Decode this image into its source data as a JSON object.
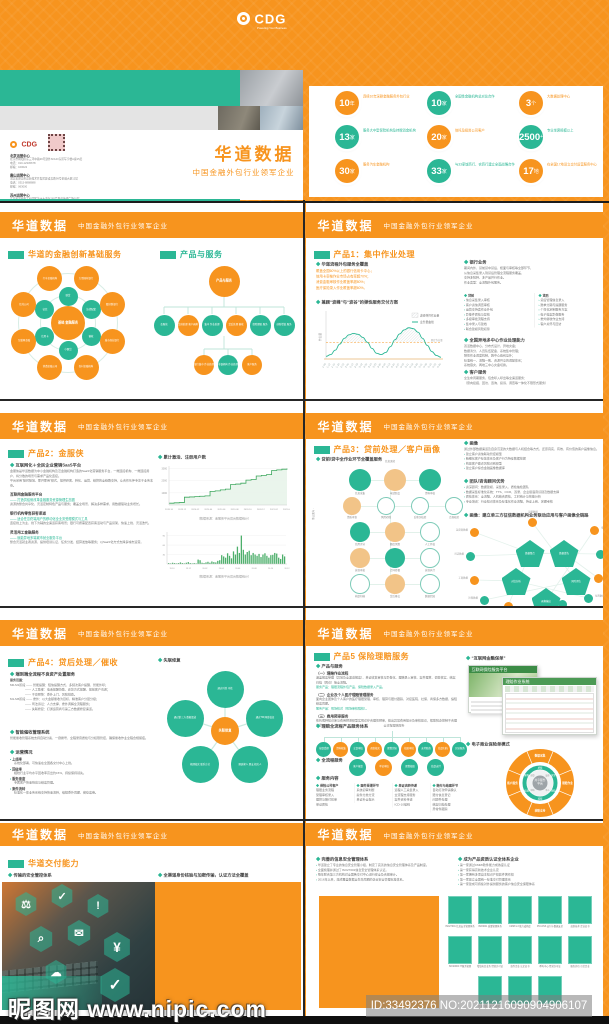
{
  "watermark": {
    "site": "昵图网 www.nipic.com",
    "id_text": "ID:33492376 NO:20211216090904906107"
  },
  "brand": {
    "logo": "CDG",
    "logo_tagline": "Powering Your Business",
    "name": "华道数据",
    "tagline": "中国金融外包行业领军企业"
  },
  "cover": {
    "title": "华道数据",
    "subtitle": "中国金融外包行业领军企业",
    "contacts": [
      {
        "n": "北京运营中心",
        "a": "北京市朝阳区东三环中路39号建外SOHO东区写字楼A座15层",
        "t": "电话：010-12345678",
        "z": "邮编：100022"
      },
      {
        "n": "唐山运营中心",
        "a": "河北省唐山市高新技术开发区建设北路99号金融大厦12层",
        "t": "电话：0315-8888888",
        "z": "邮编：063000"
      },
      {
        "n": "苏州运营中心",
        "a": "江苏省苏州市工业园区苏州大道东265号现代传媒广场10层",
        "t": "电话：0512-6666666",
        "z": "邮编：215000"
      }
    ],
    "web": "网址：www.huadaodata.com",
    "mail": "邮箱：HD.MKT@huadaodata.com"
  },
  "stats": {
    "items": [
      {
        "v": "10",
        "s": "年",
        "c": "o",
        "label": "连续10年深耕金融服务外包行业"
      },
      {
        "v": "10",
        "s": "家",
        "c": "t",
        "label": "全国性金融机构总对总合作"
      },
      {
        "v": "3",
        "s": "个",
        "c": "o",
        "label": "大数据处理中心"
      },
      {
        "v": "13",
        "s": "家",
        "c": "t",
        "label": "服务大中型保险机构及持牌消金机构"
      },
      {
        "v": "20",
        "s": "家",
        "c": "o",
        "label": "信托及投资公司客户"
      },
      {
        "v": "2500",
        "s": "+",
        "c": "t",
        "label": "专业坐席规模以上"
      },
      {
        "v": "30",
        "s": "家",
        "c": "o",
        "label": "服务汽车金融机构"
      },
      {
        "v": "33",
        "s": "家",
        "c": "t",
        "label": "与33家城商行、农商行建立全面战略合作"
      },
      {
        "v": "17",
        "s": "地",
        "c": "o",
        "label": "在全国17地设立交付运营服务中心"
      }
    ]
  },
  "slides": {
    "services": {
      "sec1": "华道的金融创新基础服务",
      "sec2": "产品与服务",
      "hub": {
        "center": "基础 金融服务",
        "inner": [
          "助贷",
          "法律配套",
          "催收",
          "小额贷",
          "信用卡",
          "征信"
        ],
        "outer": [
          "大型国有银行",
          "股份制银行",
          "城市商业银行",
          "农村金融机构",
          "消费金融公司",
          "互联网金融",
          "信托公司",
          "汽车金融机构"
        ]
      },
      "tree": {
        "root": "产品与服务",
        "level1": [
          {
            "t": "金服侠",
            "c": "t"
          },
          {
            "t": "贷前处理 客户画像",
            "c": "o"
          },
          {
            "t": "集中 作业处理",
            "c": "t"
          },
          {
            "t": "贷后处理 催收",
            "c": "o"
          },
          {
            "t": "保险理赔 服务",
            "c": "t"
          },
          {
            "t": "创新增值 服务",
            "c": "t"
          }
        ],
        "level2": [
          {
            "t": "银行集中 作业处理",
            "c": "o"
          },
          {
            "t": "非银机构 作业处理",
            "c": "t"
          },
          {
            "t": "客户服务",
            "c": "o"
          }
        ]
      }
    },
    "p1": {
      "title": "产品1：集中作业处理",
      "blockA_h": "华道流程外包服务全覆盖",
      "blockA": [
        "覆盖全国60%以上的银行信用卡中心；",
        "信用卡审核作业市场占有率超70%；",
        "消费金融审核作业覆盖率超80%；",
        "医疗保险录入作业覆盖率超60%。"
      ],
      "blockB_h": "兼顾“波峰”与“波谷”的弹性服务交付方案",
      "r1_h": "银行业务",
      "r1_p": [
        "期间内外、贷前贷中贷后、柜面与审核等全部环节，",
        "从信息采集录入到贷后管理全流程服务覆盖，",
        "支持多险种、多产品并行作业。",
        "作业类型：全流程外包服务。"
      ],
      "col1_h": "贷前",
      "col1": [
        "信息采集录入审核",
        "客户资信调查审核",
        "运营支持类作业外包",
        "影像件质检与复核",
        "多级审批流程支持",
        "集中录入与建档",
        "联合建模风险初筛"
      ],
      "col2_h": "贷后",
      "col2": [
        "贷后管理信息录入",
        "账单分期与提醒服务",
        "个性化定制服务方案",
        "电子档案影像服务",
        "委外催收作业支持",
        "客户关怀与回访"
      ],
      "r3_h": "全国异地多中心作业处理能力",
      "r3": [
        "双活数据中心，分布式设计，异地灾备；",
        "数据清分、人员队伍配备、系统集中管理；",
        "弹性作业调度机制，跨中心峰谷互补；",
        "标准统一、流程一致、资源共享的调配体系；",
        "系统容灾，两地三中心灾备切换。"
      ],
      "r4_h": "客户服务",
      "r4": [
        "全生命周期服务，包含呼入呼出等全渠道服务：",
        "（意向挖掘、回访、咨询、投诉、调查等一体化不限形式服务）"
      ]
    },
    "p2": {
      "title": "产品2：金服侠",
      "intro_h": "互联网化＋全民企业营销SaaS平台",
      "intro": [
        "金服侠是华道数据为中小金融机构及泛金融机构打造的SaaS化营销服务平台，一端连接机构、一端连接用户，将分散的场景与需求产品化连接。",
        "平台采用“随时随地、即开即用”模式，提供获客、转化、运营、结算的全链路支持，让合作伙伴专注于业务本身。"
      ],
      "blocks": [
        {
          "h": "互联网金融服务平台",
          "s": "—— 打造供给侧改革金融服务资源管理生态圈",
          "p": "资源的整合共享化，灵活定制特色产品与服务；覆盖全场景、解决多样需求，用数据驱动业务增长。"
        },
        {
          "h": "银行机构零售获客渠道",
          "s": "—— 适合任意终端用户的移动化全业务受理模式与工具",
          "p": "连接线上为主、线下为辅的全渠道获客场景；银行可按需配置获客活动与产品货架，快速上线、灵活迭代。"
        },
        {
          "h": "灵活用工金融服务",
          "s": "—— 赋能异地多端城市就业服务平台",
          "p": "整合灵活就业者资源，提供培训认证、任务分发、结算发放等服务；以SaaS化方式支撑多城市运营。"
        }
      ],
      "chart1_h": "累计激活、注册用户数",
      "chart1_cap": "（数据来源：金服侠平台后台数据统计）",
      "chart2_cap": "（数据来源：金服侠平台后台数据统计）"
    },
    "p3": {
      "title": "产品3：贷前处理／客户画像",
      "grid_h": "贷前/贷中全作业环节全覆盖服务",
      "grid": {
        "top_label": "信息流转",
        "side_label": "作业流向",
        "rows": [
          {
            "cells": [
              {
                "c": "t",
                "l": "信息采集"
              },
              {
                "c": "tan",
                "l": "电话照会"
              },
              {
                "c": "t",
                "l": "资料审核"
              }
            ]
          },
          {
            "cells": [
              {
                "c": "tan",
                "l": "资质审查"
              },
              {
                "c": "w",
                "l": "风险初筛"
              },
              {
                "c": "w",
                "l": "反欺诈核验"
              },
              {
                "c": "w",
                "l": "合规校验"
              }
            ]
          },
          {
            "cells": [
              {
                "c": "t",
                "l": "信用评分"
              },
              {
                "c": "tan",
                "l": "额度测算"
              },
              {
                "c": "w",
                "l": "人工复核"
              }
            ]
          },
          {
            "cells": [
              {
                "c": "tan",
                "l": "放款审批"
              },
              {
                "c": "t",
                "l": "合同签署"
              },
              {
                "c": "w",
                "l": "放款执行"
              }
            ]
          },
          {
            "cells": [
              {
                "c": "w",
                "l": "档案归档"
              },
              {
                "c": "tan",
                "l": "贷后移交"
              },
              {
                "c": "w",
                "l": "数据回流"
              }
            ]
          }
        ]
      },
      "r1_h": "画像",
      "r1_p": [
        "通过外部数据渠道及自身沉淀的大数据与人机结合等方式，还原真实、有效、有价值的客户画像信息。"
      ],
      "r1_list": [
        "建立客户资信联动管控模型",
        "精细化客户标签体系及客户行为特征数据挖掘",
        "构建客户欺诈风险识别模型",
        "建立客户综合金融画像数据库"
      ],
      "r2_h": "团队/咨询顾问优势",
      "r2_list": [
        "资深顾问：数据建模、采集录入、质检抽检团队",
        "数据采集标准化系统：TTS、OCR、双录、企业级语音识别及数据支撑",
        "质检体系：全流程、人机结合质检，工时统计与效能分析",
        "专业培训：行业知识体系及标准化作业流程，持证上岗、定期考核"
      ],
      "cluster_cap": "画像：建立单三方征信数据机构业务联动应用与客户画像全链路",
      "cluster": {
        "pentagons": [
          "数据整合",
          "数据清洗",
          "对比分析",
          "风险评估",
          "画像输出"
        ],
        "sats": [
          "运营商数据",
          "司法数据",
          "工商数据",
          "社保数据",
          "电商数据",
          "银联数据",
          "征信数据",
          "位置数据",
          "设备数据",
          "舆情数据",
          "消费数据"
        ]
      }
    },
    "p4": {
      "title": "产品4：贷后处理／催收",
      "a_h": "端到端全流程不良资产处置服务",
      "a_sub": "服务范围：",
      "a_lines": [
        "M0-M1阶段 —— 智能提醒：短信提醒方式、多频次客户提醒、智能外呼；",
        "　　　　　—— 人工助催：电话提醒协助、还款方式提醒、提前客户沟通；",
        "　　　　　—— 不良预警：委外上门、风险排查。",
        "M1-M6阶段 —— 委外：以大金额催收为目标，精准客户分层分级；",
        "　　　　　—— 司法诉讼：人力支撑、委外调解全流程服务；",
        "　　　　　—— 失联修复：打通运营商与第三方数据修复渠道。"
      ],
      "b_h": "智能催收管理系统",
      "b_p": [
        "智能催收管理系统支持自动分案、一键拨号、全程录音质检与分权限管控，确保催收作业全程合规留痕。"
      ],
      "c_h": "运营情况",
      "ops": [
        {
          "t": "上线率",
          "d": "系统化部署，可快速在全国各交付中心上线。"
        },
        {
          "t": "回收率",
          "d": "相较行业平均水平回收率高出约15%，持续保持领先。"
        },
        {
          "t": "服务速度",
          "d": "专属客户快速响应与结案管理。"
        },
        {
          "t": "案件流转",
          "d": "标准化一体业务系统支持快速流转，缩短委外周期、留存案卷。"
        }
      ],
      "flower_cap": "失联修复",
      "flower": {
        "center": "失联修复",
        "petals": [
          "通过刊登 寻找",
          "通过TM 网查核证",
          "顺延家人 朋友 相关人",
          "梳理核实 联系方式",
          "通过第三方 数据渠道"
        ]
      }
    },
    "p5": {
      "title": "产品5 保险理赔服务",
      "l_h": "产品与服务",
      "groups": [
        {
          "h": "（一）理赔作业流程",
          "p": "涵盖报案受理（异地及全渠道报案）、单证收集审核与影像化、理赔录入审核、案件理算、调查核实、结案归档（回访）等全流程。",
          "s": "服务产品：理赔流程外包产品、保险数据录入产品。"
        },
        {
          "h": "（二）企业及个人医疗理赔管理服务",
          "p": "面向企业团体及个人客户的医疗理赔受理、审核、理算与赔付跟踪，对接医院、社保、商保多方数据，缩短结案周期。",
          "s": "服务产品：现场核对（现场审核稽核）。"
        },
        {
          "h": "（三）费用预审服务",
          "p": "依托病种知识库与费用预测模型实现诊疗合理性预审，输出异常费用提示及审核建议，帮助险企控制不合理支出。",
          "s": ""
        }
      ],
      "chain_h": "理赔全流程产品服务体系",
      "chain_top": "全流程理赔服务",
      "chain": [
        "接案受理",
        "资料收集",
        "立案审核",
        "调查核实",
        "理算定损",
        "核赔审批",
        "支付赔款",
        "结案归档",
        "回访服务"
      ],
      "crow_h": "全流程服务",
      "crow": [
        {
          "t": "客户报案",
          "c": "t"
        },
        {
          "t": "单证审核",
          "c": "o"
        },
        {
          "t": "理算核赔",
          "c": "t"
        },
        {
          "t": "结案支付",
          "c": "t"
        }
      ],
      "cols_h": "服务内容",
      "columns": [
        {
          "h": "保险公司客户",
          "items": [
            "理赔业务流程",
            "受理审核录入",
            "理算与赔付初审",
            "单证质检"
          ]
        },
        {
          "h": "案件受理环节",
          "items": [
            "系统初审判断",
            "案件分类分流",
            "单证补全提示"
          ]
        },
        {
          "h": "单证流转传递",
          "items": [
            "远程人工采集录入",
            "全流程支持服务",
            "案件资料传递",
            "ICD-10编码"
          ]
        },
        {
          "h": "赔付与结案环节",
          "items": [
            "自动打款申请确认",
            "赔付信息登记",
            "问题件处理",
            "结案归档处理",
            "异常件跟踪"
          ]
        }
      ],
      "shots_h": "“互联网金融保单”",
      "shot1_title": "互联网保险服务平台",
      "shot2_title": "理赔作业系统",
      "donut_h": "电子商业保险单模式",
      "donut": {
        "center": "共享服务 平台",
        "ring": [
          "承保",
          "保全",
          "理赔",
          "核保",
          "续期",
          "客服"
        ],
        "inner": [
          "受理",
          "录入",
          "审核",
          "理算"
        ],
        "outer": [
          "数据采集",
          "理赔作业",
          "核赔支持",
          "客户服务"
        ]
      }
    },
    "delivery": {
      "sec": "华道交付能力",
      "cap1": "传输的安全管控体系",
      "cap2": "全渠道身份核验与加密传输，认证方法全覆盖",
      "hex_glyphs": [
        "⚖",
        "✓",
        "!",
        "⌕",
        "✉",
        "¥",
        "☁",
        "✓"
      ]
    },
    "cert": {
      "l_h": "完善的信息安全管理体系",
      "l_items": [
        "华道建立了专业的信息安全管理小组，制定了完善的信息安全管理体系及产品制度。",
        "全面梳理并通过了ISO27001信息安全管理体系认证。",
        "每年联合第三方机构对全国各交付中心进行安全及合规审计。",
        "2016年以来，建成覆盖数据全生命周期的企业安全管理标准体系。"
      ],
      "r_h": "成为产品资质认证全体系企业",
      "r_items": [
        "第一家通过CMMI软件能力成熟度认证",
        "第一家获得高新技术企业认定",
        "第一家拥有多项自主知识产权软件著作权",
        "第一家建立全国统一标准交付管理体系",
        "第一家建成可持续对外提供服务的客户信息安全保障体系"
      ],
      "cards": [
        "ISO27001 信息安全管理体系",
        "ISO9001 质量管理体系",
        "CMMI L3 能力成熟度",
        "PCI-DSS 支付卡数据安全",
        "高新技术 企业证书",
        "ISO20000 IT服务管理",
        "增值电信业务 经营许可证",
        "软件企业 认定证书",
        "呼叫中心 经营许可证",
        "服务外包 示范企业",
        "信息系统安全 等级保护",
        "AAA级 信用企业",
        "软件著作权 登记证书"
      ]
    }
  },
  "charts": {
    "workload": {
      "type": "area-line",
      "y_label": "作业量",
      "legend_area": "波峰弹性作业量",
      "legend_line": "业务量曲线",
      "capacity_label": "额定作业量",
      "capacity": 38,
      "ylim": [
        0,
        100
      ],
      "values": [
        6,
        10,
        20,
        34,
        47,
        55,
        58,
        56,
        49,
        38,
        24,
        13,
        10,
        15,
        28,
        44,
        57,
        66,
        71,
        69,
        61,
        47,
        31,
        17,
        8,
        4
      ],
      "x_ticks": [
        "1-05",
        "1-12",
        "1-19",
        "1-26",
        "2-02",
        "2-09",
        "2-16",
        "2-23",
        "3-02",
        "3-09",
        "3-16",
        "3-23",
        "3-30",
        "4-06",
        "4-13",
        "4-20",
        "4-27",
        "5-04",
        "5-11",
        "5-18",
        "5-25",
        "6-01",
        "6-08",
        "6-15",
        "6-22",
        "6-29"
      ]
    },
    "users": {
      "type": "line",
      "y_ticks": [
        3000,
        2000,
        1000
      ],
      "ylim": [
        0,
        3200
      ],
      "values": [
        150,
        180,
        200,
        640,
        660,
        690,
        720,
        750,
        1120,
        1160,
        1240,
        1300,
        1680,
        1720,
        1790,
        2040,
        2090,
        2380,
        2430,
        2490,
        2830,
        2880,
        2940,
        3000
      ],
      "x_ticks": [
        "2019.10",
        "2019.12",
        "2020.02",
        "2020.04",
        "2020.06",
        "2020.08",
        "2020.10",
        "2020.12",
        "2021.02",
        "2021.04"
      ]
    },
    "daily": {
      "type": "bar",
      "y_ticks": [
        90,
        60,
        30
      ],
      "ylim": [
        0,
        95
      ],
      "values": [
        3,
        2,
        4,
        3,
        2,
        3,
        5,
        3,
        2,
        4,
        6,
        3,
        2,
        3,
        2,
        14,
        12,
        4,
        3,
        5,
        7,
        4,
        8,
        6,
        5,
        10,
        12,
        28,
        24,
        20,
        34,
        26,
        18,
        40,
        30,
        55,
        35,
        90,
        45,
        30,
        38,
        42,
        28,
        35,
        30,
        26,
        32,
        22,
        30,
        34,
        26,
        20,
        28,
        29,
        35,
        33,
        20,
        16,
        30,
        24
      ],
      "x_ticks": [
        "19.10",
        "19.12",
        "20.02",
        "20.04",
        "20.06",
        "20.08",
        "20.10",
        "20.12"
      ]
    }
  }
}
